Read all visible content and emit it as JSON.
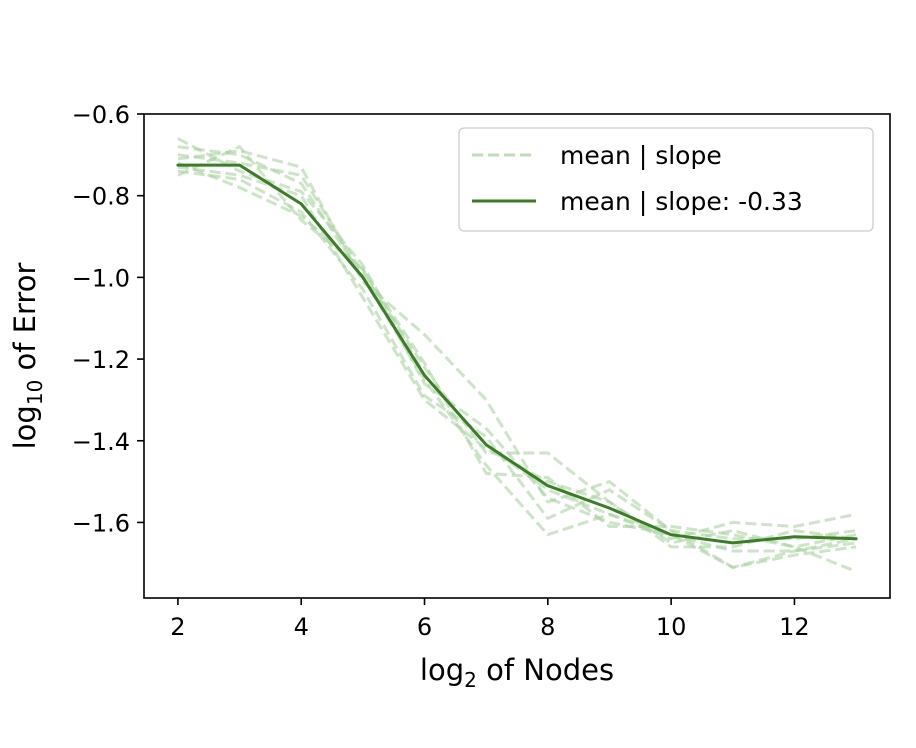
{
  "chart_data": {
    "type": "line",
    "x_label": {
      "base": "log",
      "sub": "2",
      "rest": " of Nodes"
    },
    "y_label": {
      "base": "log",
      "sub": "10",
      "rest": " of Error"
    },
    "xlim": [
      1.45,
      13.55
    ],
    "ylim": [
      -1.785,
      -0.6
    ],
    "x_ticks": [
      2,
      4,
      6,
      8,
      10,
      12
    ],
    "y_ticks": [
      -0.6,
      -0.8,
      -1.0,
      -1.2,
      -1.4,
      -1.6
    ],
    "grid": false,
    "legend_position": "top-right",
    "colors": {
      "mean": "#3a7d26",
      "runs": "#a9d4a0"
    },
    "x": [
      2,
      3,
      4,
      5,
      6,
      7,
      8,
      9,
      10,
      11,
      12,
      13
    ],
    "series": [
      {
        "name": "mean | slope",
        "style": "dashed",
        "values": [
          -0.66,
          -0.74,
          -0.79,
          -0.97,
          -1.24,
          -1.41,
          -1.52,
          -1.58,
          -1.63,
          -1.67,
          -1.67,
          -1.65
        ]
      },
      {
        "name": "",
        "style": "dashed",
        "values": [
          -0.68,
          -0.7,
          -0.77,
          -1.0,
          -1.25,
          -1.46,
          -1.63,
          -1.58,
          -1.64,
          -1.6,
          -1.61,
          -1.58
        ]
      },
      {
        "name": "",
        "style": "dashed",
        "values": [
          -0.7,
          -0.72,
          -0.75,
          -0.99,
          -1.22,
          -1.43,
          -1.43,
          -1.55,
          -1.66,
          -1.66,
          -1.62,
          -1.64
        ]
      },
      {
        "name": "",
        "style": "dashed",
        "values": [
          -0.74,
          -0.76,
          -0.84,
          -1.03,
          -1.29,
          -1.39,
          -1.59,
          -1.52,
          -1.62,
          -1.71,
          -1.68,
          -1.66
        ]
      },
      {
        "name": "",
        "style": "dashed",
        "values": [
          -0.72,
          -0.78,
          -0.85,
          -0.98,
          -1.21,
          -1.48,
          -1.49,
          -1.61,
          -1.61,
          -1.63,
          -1.66,
          -1.72
        ]
      },
      {
        "name": "",
        "style": "dashed",
        "values": [
          -0.71,
          -0.69,
          -0.73,
          -1.01,
          -1.14,
          -1.3,
          -1.55,
          -1.5,
          -1.62,
          -1.64,
          -1.64,
          -1.62
        ]
      },
      {
        "name": "",
        "style": "dashed",
        "values": [
          -0.75,
          -0.68,
          -0.86,
          -0.98,
          -1.26,
          -1.37,
          -1.54,
          -1.6,
          -1.63,
          -1.71,
          -1.67,
          -1.64
        ]
      },
      {
        "name": "",
        "style": "dashed",
        "values": [
          -0.73,
          -0.75,
          -0.8,
          -1.05,
          -1.3,
          -1.42,
          -1.5,
          -1.55,
          -1.65,
          -1.62,
          -1.66,
          -1.63
        ]
      },
      {
        "name": "mean | slope: -0.33",
        "style": "solid",
        "values": [
          -0.725,
          -0.725,
          -0.82,
          -1.0,
          -1.24,
          -1.41,
          -1.51,
          -1.565,
          -1.63,
          -1.65,
          -1.635,
          -1.64
        ]
      }
    ]
  }
}
